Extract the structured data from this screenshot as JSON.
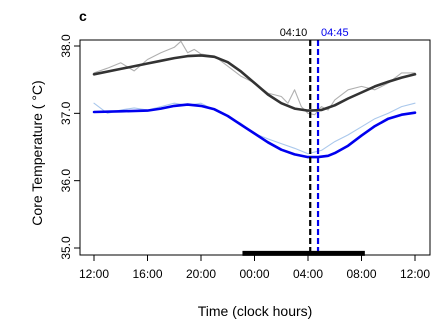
{
  "panel_letter": "c",
  "chart_data": {
    "type": "line",
    "xlabel": "Time (clock hours)",
    "ylabel": "Core Temperature ( °C)",
    "x_unit": "clock hour (continuous from 12:00 day 1 to 12:00 day 2)",
    "xlim": [
      12,
      36
    ],
    "ylim": [
      34.9,
      38.05
    ],
    "x_ticks": [
      {
        "x": 12,
        "label": "12:00"
      },
      {
        "x": 16,
        "label": "16:00"
      },
      {
        "x": 20,
        "label": "20:00"
      },
      {
        "x": 24,
        "label": "00:00"
      },
      {
        "x": 28,
        "label": "04:00"
      },
      {
        "x": 32,
        "label": "08:00"
      },
      {
        "x": 36,
        "label": "12:00"
      }
    ],
    "y_ticks": [
      {
        "y": 35.0,
        "label": "35.0"
      },
      {
        "y": 36.0,
        "label": "36.0"
      },
      {
        "y": 37.0,
        "label": "37.0"
      },
      {
        "y": 38.0,
        "label": "38.0"
      }
    ],
    "series": [
      {
        "kind": "raw",
        "color": "#b0b0b0",
        "x": [
          12,
          13,
          14,
          15,
          16,
          17,
          18,
          18.5,
          19,
          19.5,
          20,
          21,
          22,
          23,
          24,
          25,
          26,
          26.5,
          27,
          27.5,
          28,
          28.5,
          29,
          29.5,
          30,
          31,
          32,
          33,
          34,
          35,
          36
        ],
        "y": [
          37.6,
          37.67,
          37.75,
          37.63,
          37.8,
          37.9,
          37.98,
          38.07,
          37.9,
          37.95,
          37.88,
          37.85,
          37.7,
          37.55,
          37.45,
          37.3,
          37.25,
          37.15,
          37.35,
          37.1,
          37.0,
          36.98,
          37.1,
          37.05,
          37.2,
          37.35,
          37.4,
          37.35,
          37.45,
          37.6,
          37.6
        ]
      },
      {
        "kind": "fit",
        "color": "#333333",
        "x": [
          12,
          14,
          16,
          17,
          18,
          19,
          20,
          21,
          22,
          23,
          24,
          25,
          26,
          27,
          28,
          28.17,
          29,
          30,
          31,
          32,
          33,
          34,
          35,
          36
        ],
        "y": [
          37.58,
          37.66,
          37.74,
          37.78,
          37.82,
          37.85,
          37.86,
          37.84,
          37.76,
          37.62,
          37.45,
          37.28,
          37.15,
          37.07,
          37.04,
          37.04,
          37.05,
          37.12,
          37.22,
          37.31,
          37.4,
          37.47,
          37.53,
          37.58
        ]
      },
      {
        "kind": "raw",
        "color": "#aac8ec",
        "x": [
          12,
          13,
          14,
          15,
          16,
          17,
          18,
          19,
          20,
          21,
          22,
          23,
          24,
          25,
          26,
          27,
          28,
          29,
          30,
          31,
          32,
          33,
          34,
          35,
          36
        ],
        "y": [
          37.15,
          37.0,
          37.05,
          37.08,
          37.05,
          37.1,
          37.15,
          37.12,
          37.15,
          37.05,
          36.95,
          36.85,
          36.7,
          36.62,
          36.55,
          36.48,
          36.4,
          36.45,
          36.58,
          36.68,
          36.8,
          36.92,
          37.0,
          37.1,
          37.15
        ]
      },
      {
        "kind": "fit",
        "color": "#0000ee",
        "x": [
          12,
          14,
          16,
          17,
          18,
          19,
          20,
          21,
          22,
          23,
          24,
          25,
          26,
          27,
          28,
          28.75,
          29.5,
          30,
          31,
          32,
          33,
          34,
          35,
          36
        ],
        "y": [
          37.02,
          37.03,
          37.04,
          37.07,
          37.11,
          37.13,
          37.11,
          37.06,
          36.96,
          36.83,
          36.7,
          36.57,
          36.46,
          36.39,
          36.35,
          36.35,
          36.37,
          36.41,
          36.52,
          36.67,
          36.81,
          36.92,
          36.98,
          37.01
        ]
      }
    ],
    "vlines": [
      {
        "x": 28.1667,
        "label": "04:10",
        "color": "#000000",
        "style": "dashed"
      },
      {
        "x": 28.75,
        "label": "04:45",
        "color": "#0000ee",
        "style": "dashed"
      }
    ],
    "sleep_bar": {
      "x_start": 23.1,
      "x_end": 32.25,
      "y": 34.92,
      "color": "#000000"
    },
    "grid": false,
    "legend": "none"
  }
}
